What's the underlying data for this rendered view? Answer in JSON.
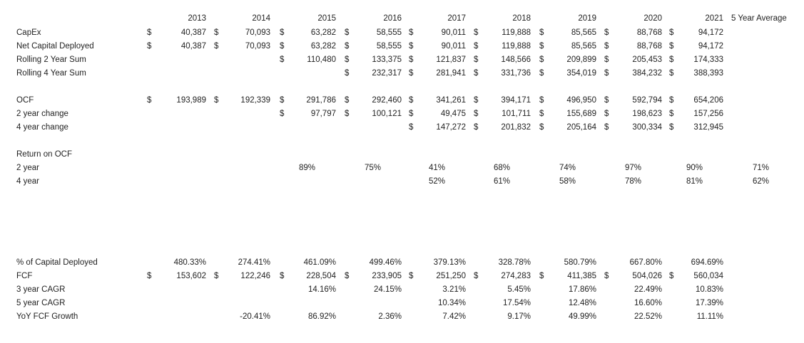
{
  "header": {
    "years": [
      "2013",
      "2014",
      "2015",
      "2016",
      "2017",
      "2018",
      "2019",
      "2020",
      "2021"
    ],
    "avg_label": "5 Year Average"
  },
  "currency_symbol": "$",
  "rows": {
    "capex": {
      "label": "CapEx",
      "values": [
        "40,387",
        "70,093",
        "63,282",
        "58,555",
        "90,011",
        "119,888",
        "85,565",
        "88,768",
        "94,172"
      ]
    },
    "net_capital": {
      "label": "Net Capital Deployed",
      "values": [
        "40,387",
        "70,093",
        "63,282",
        "58,555",
        "90,011",
        "119,888",
        "85,565",
        "88,768",
        "94,172"
      ]
    },
    "rolling2": {
      "label": "Rolling 2 Year Sum",
      "values": [
        "",
        "",
        "110,480",
        "133,375",
        "121,837",
        "148,566",
        "209,899",
        "205,453",
        "174,333"
      ]
    },
    "rolling4": {
      "label": "Rolling 4 Year Sum",
      "values": [
        "",
        "",
        "",
        "232,317",
        "281,941",
        "331,736",
        "354,019",
        "384,232",
        "388,393"
      ]
    },
    "ocf": {
      "label": "OCF",
      "values": [
        "193,989",
        "192,339",
        "291,786",
        "292,460",
        "341,261",
        "394,171",
        "496,950",
        "592,794",
        "654,206"
      ]
    },
    "change2": {
      "label": "2 year change",
      "values": [
        "",
        "",
        "97,797",
        "100,121",
        "49,475",
        "101,711",
        "155,689",
        "198,623",
        "157,256"
      ]
    },
    "change4": {
      "label": "4 year change",
      "values": [
        "",
        "",
        "",
        "",
        "147,272",
        "201,832",
        "205,164",
        "300,334",
        "312,945"
      ]
    },
    "return_header": {
      "label": "Return on OCF"
    },
    "return2": {
      "label": "2 year",
      "values": [
        "",
        "",
        "89%",
        "75%",
        "41%",
        "68%",
        "74%",
        "97%",
        "90%"
      ],
      "avg": "71%"
    },
    "return4": {
      "label": "4 year",
      "values": [
        "",
        "",
        "",
        "",
        "52%",
        "61%",
        "58%",
        "78%",
        "81%"
      ],
      "avg": "62%"
    },
    "pct_capital": {
      "label": "% of Capital Deployed",
      "values": [
        "480.33%",
        "274.41%",
        "461.09%",
        "499.46%",
        "379.13%",
        "328.78%",
        "580.79%",
        "667.80%",
        "694.69%"
      ]
    },
    "fcf": {
      "label": "FCF",
      "values": [
        "153,602",
        "122,246",
        "228,504",
        "233,905",
        "251,250",
        "274,283",
        "411,385",
        "504,026",
        "560,034"
      ]
    },
    "cagr3": {
      "label": "3 year CAGR",
      "values": [
        "",
        "",
        "14.16%",
        "24.15%",
        "3.21%",
        "5.45%",
        "17.86%",
        "22.49%",
        "10.83%"
      ]
    },
    "cagr5": {
      "label": "5 year CAGR",
      "values": [
        "",
        "",
        "",
        "",
        "10.34%",
        "17.54%",
        "12.48%",
        "16.60%",
        "17.39%"
      ]
    },
    "yoy": {
      "label": "YoY FCF Growth",
      "values": [
        "",
        "-20.41%",
        "86.92%",
        "2.36%",
        "7.42%",
        "9.17%",
        "49.99%",
        "22.52%",
        "11.11%"
      ]
    }
  }
}
